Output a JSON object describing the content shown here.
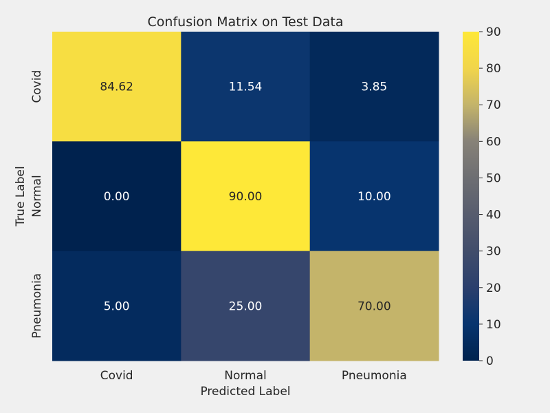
{
  "chart_data": {
    "type": "heatmap",
    "title": "Confusion Matrix on Test Data",
    "xlabel": "Predicted Label",
    "ylabel": "True Label",
    "x_categories": [
      "Covid",
      "Normal",
      "Pneumonia"
    ],
    "y_categories": [
      "Covid",
      "Normal",
      "Pneumonia"
    ],
    "values": [
      [
        84.62,
        11.54,
        3.85
      ],
      [
        0.0,
        90.0,
        10.0
      ],
      [
        5.0,
        25.0,
        70.0
      ]
    ],
    "value_labels": [
      [
        "84.62",
        "11.54",
        "3.85"
      ],
      [
        "0.00",
        "90.00",
        "10.00"
      ],
      [
        "5.00",
        "25.00",
        "70.00"
      ]
    ],
    "colorbar": {
      "range": [
        0,
        90
      ],
      "ticks": [
        0,
        10,
        20,
        30,
        40,
        50,
        60,
        70,
        80,
        90
      ],
      "colormap": "cividis"
    },
    "grid": false
  }
}
